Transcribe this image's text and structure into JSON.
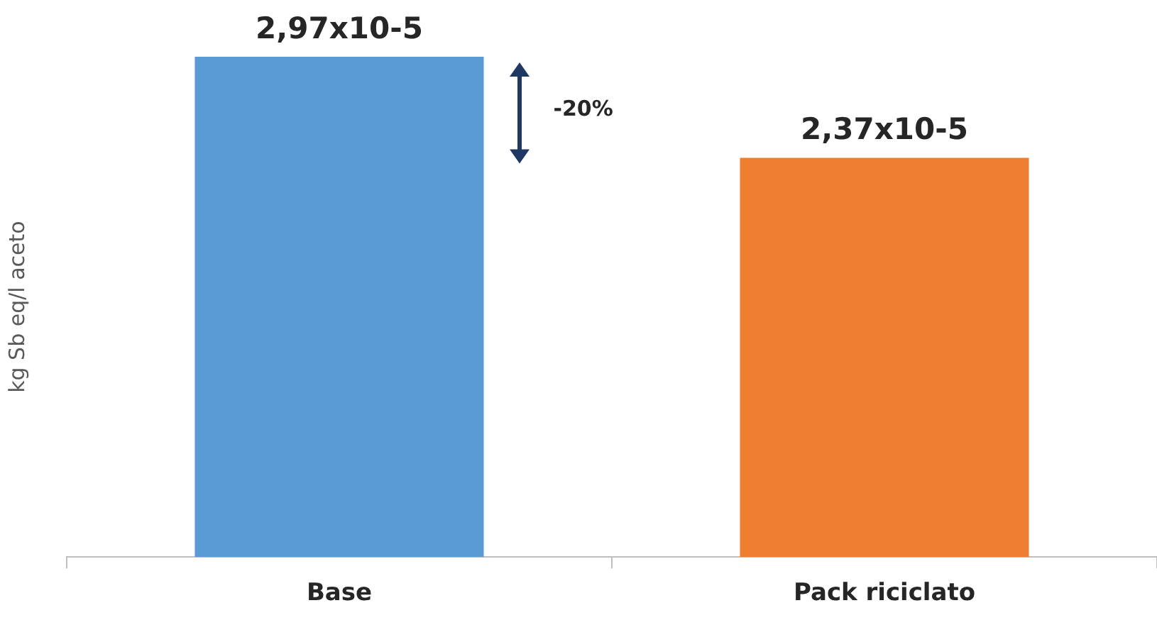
{
  "chart_data": {
    "type": "bar",
    "ylabel": "kg Sb eq/l aceto",
    "categories": [
      "Base",
      "Pack riciclato"
    ],
    "values": [
      2.97,
      2.37
    ],
    "colors": [
      "#5b9bd5",
      "#ed7d31"
    ],
    "value_labels": [
      "2,97x10-5",
      "2,37x10-5"
    ],
    "annotations": [
      "-20%"
    ],
    "grid": false,
    "legend": false
  }
}
